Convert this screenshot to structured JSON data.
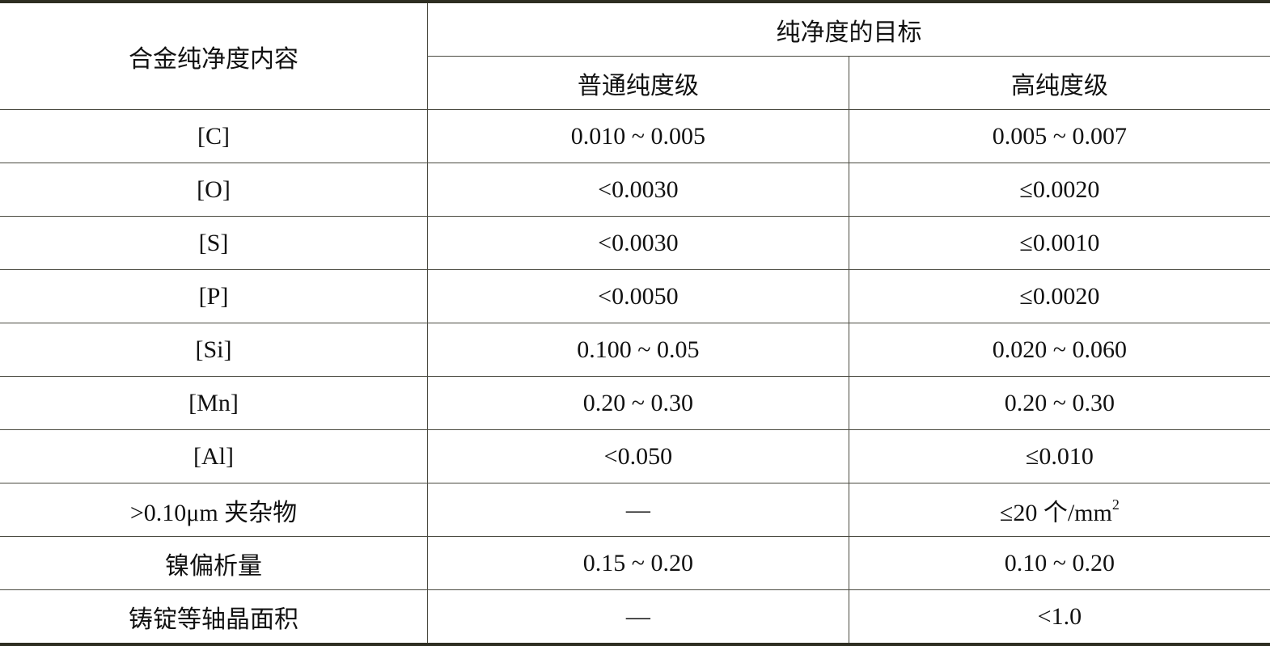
{
  "header": {
    "row_label": "合金纯净度内容",
    "group_label": "纯净度的目标",
    "columns": [
      "普通纯度级",
      "高纯度级"
    ]
  },
  "rows": [
    {
      "label": "[C]",
      "normal": "0.010 ~ 0.005",
      "high": "0.005 ~ 0.007"
    },
    {
      "label": "[O]",
      "normal": "<0.0030",
      "high": "≤0.0020"
    },
    {
      "label": "[S]",
      "normal": "<0.0030",
      "high": "≤0.0010"
    },
    {
      "label": "[P]",
      "normal": "<0.0050",
      "high": "≤0.0020"
    },
    {
      "label": "[Si]",
      "normal": "0.100 ~ 0.05",
      "high": "0.020 ~ 0.060"
    },
    {
      "label": "[Mn]",
      "normal": "0.20 ~ 0.30",
      "high": "0.20 ~ 0.30"
    },
    {
      "label": "[Al]",
      "normal": "<0.050",
      "high": "≤0.010"
    },
    {
      "label": ">0.10μm 夹杂物",
      "normal": "—",
      "high": "≤20 个/mm",
      "high_sup": "2"
    },
    {
      "label": "镍偏析量",
      "normal": "0.15 ~ 0.20",
      "high": "0.10 ~ 0.20"
    },
    {
      "label": "铸锭等轴晶面积",
      "normal": "—",
      "high": "<1.0"
    }
  ]
}
